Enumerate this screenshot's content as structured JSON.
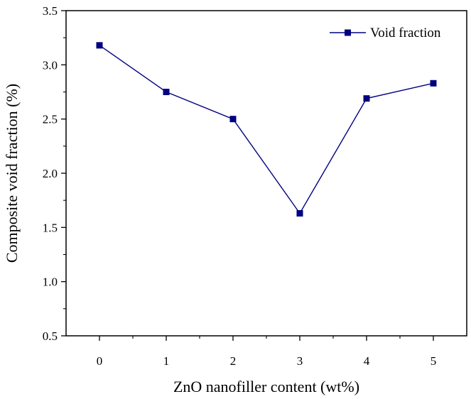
{
  "chart_data": {
    "type": "line",
    "xlabel": "ZnO nanofiller content (wt%)",
    "ylabel": "Composite void fraction (%)",
    "x": [
      0,
      1,
      2,
      3,
      4,
      5
    ],
    "xlim": [
      -0.5,
      5.5
    ],
    "ylim": [
      0.5,
      3.5
    ],
    "xticks": [
      "0",
      "1",
      "2",
      "3",
      "4",
      "5"
    ],
    "yticks": [
      "0.5",
      "1.0",
      "1.5",
      "2.0",
      "2.5",
      "3.0",
      "3.5"
    ],
    "grid": false,
    "legend_position": "top-right",
    "series": [
      {
        "name": "Void fraction",
        "color": "#000080",
        "marker": "square",
        "values": [
          3.18,
          2.75,
          2.5,
          1.63,
          2.69,
          2.83
        ]
      }
    ]
  }
}
